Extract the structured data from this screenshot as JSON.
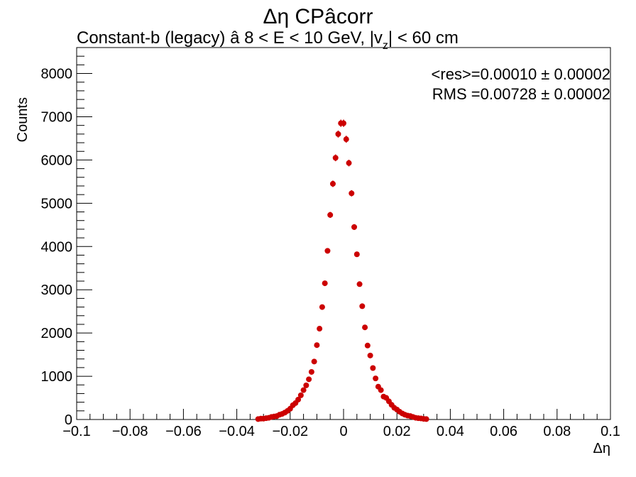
{
  "chart_data": {
    "type": "scatter",
    "title": "Δη CPâcorr",
    "subtitle_prefix": "Constant-b (legacy)   â   8 < E < 10 GeV, |v",
    "subtitle_sub": "z",
    "subtitle_suffix": "| < 60 cm",
    "xlabel": "Δη",
    "ylabel": "Counts",
    "xlim": [
      -0.1,
      0.1
    ],
    "ylim": [
      0,
      8600
    ],
    "xticks": [
      -0.1,
      -0.08,
      -0.06,
      -0.04,
      -0.02,
      0,
      0.02,
      0.04,
      0.06,
      0.08,
      0.1
    ],
    "xtick_labels": [
      "−0.1",
      "−0.08",
      "−0.06",
      "−0.04",
      "−0.02",
      "0",
      "0.02",
      "0.04",
      "0.06",
      "0.08",
      "0.1"
    ],
    "yticks": [
      0,
      1000,
      2000,
      3000,
      4000,
      5000,
      6000,
      7000,
      8000
    ],
    "ytick_labels": [
      "0",
      "1000",
      "2000",
      "3000",
      "4000",
      "5000",
      "6000",
      "7000",
      "8000"
    ],
    "marker_color": "#cc0000",
    "stats": [
      "<res>=0.00010 ± 0.00002",
      "RMS =0.00728 ± 0.00002"
    ],
    "series": [
      {
        "x": [
          -0.032,
          -0.031,
          -0.03,
          -0.029,
          -0.028,
          -0.027,
          -0.026,
          -0.025,
          -0.024,
          -0.023,
          -0.022,
          -0.021,
          -0.02,
          -0.019,
          -0.018,
          -0.017,
          -0.016,
          -0.015,
          -0.014,
          -0.013,
          -0.012,
          -0.011,
          -0.01,
          -0.009,
          -0.008,
          -0.007,
          -0.006,
          -0.005,
          -0.004,
          -0.003,
          -0.002,
          -0.001,
          0.0,
          0.001,
          0.002,
          0.003,
          0.004,
          0.005,
          0.006,
          0.007,
          0.008,
          0.009,
          0.01,
          0.011,
          0.012,
          0.013,
          0.014,
          0.015,
          0.016,
          0.017,
          0.018,
          0.019,
          0.02,
          0.021,
          0.022,
          0.023,
          0.024,
          0.025,
          0.026,
          0.027,
          0.028,
          0.029,
          0.03,
          0.031
        ],
        "y": [
          10,
          20,
          20,
          30,
          40,
          60,
          70,
          80,
          110,
          130,
          160,
          200,
          250,
          330,
          380,
          460,
          560,
          680,
          790,
          930,
          1100,
          1340,
          1720,
          2100,
          2600,
          3150,
          3900,
          4730,
          5450,
          6050,
          6600,
          6850,
          6850,
          6480,
          5930,
          5230,
          4450,
          3820,
          3130,
          2620,
          2130,
          1710,
          1480,
          1190,
          950,
          760,
          680,
          530,
          500,
          420,
          340,
          270,
          230,
          180,
          140,
          110,
          90,
          80,
          60,
          40,
          30,
          25,
          15,
          10
        ],
        "yerr": [
          3,
          4,
          4,
          5,
          6,
          8,
          8,
          9,
          10,
          11,
          13,
          14,
          16,
          18,
          19,
          21,
          24,
          26,
          28,
          30,
          33,
          37,
          41,
          46,
          51,
          56,
          62,
          69,
          74,
          78,
          81,
          83,
          83,
          80,
          77,
          72,
          67,
          62,
          56,
          51,
          46,
          41,
          38,
          34,
          31,
          28,
          26,
          23,
          22,
          20,
          18,
          16,
          15,
          13,
          12,
          10,
          9,
          9,
          8,
          6,
          5,
          5,
          4,
          3
        ]
      }
    ]
  }
}
